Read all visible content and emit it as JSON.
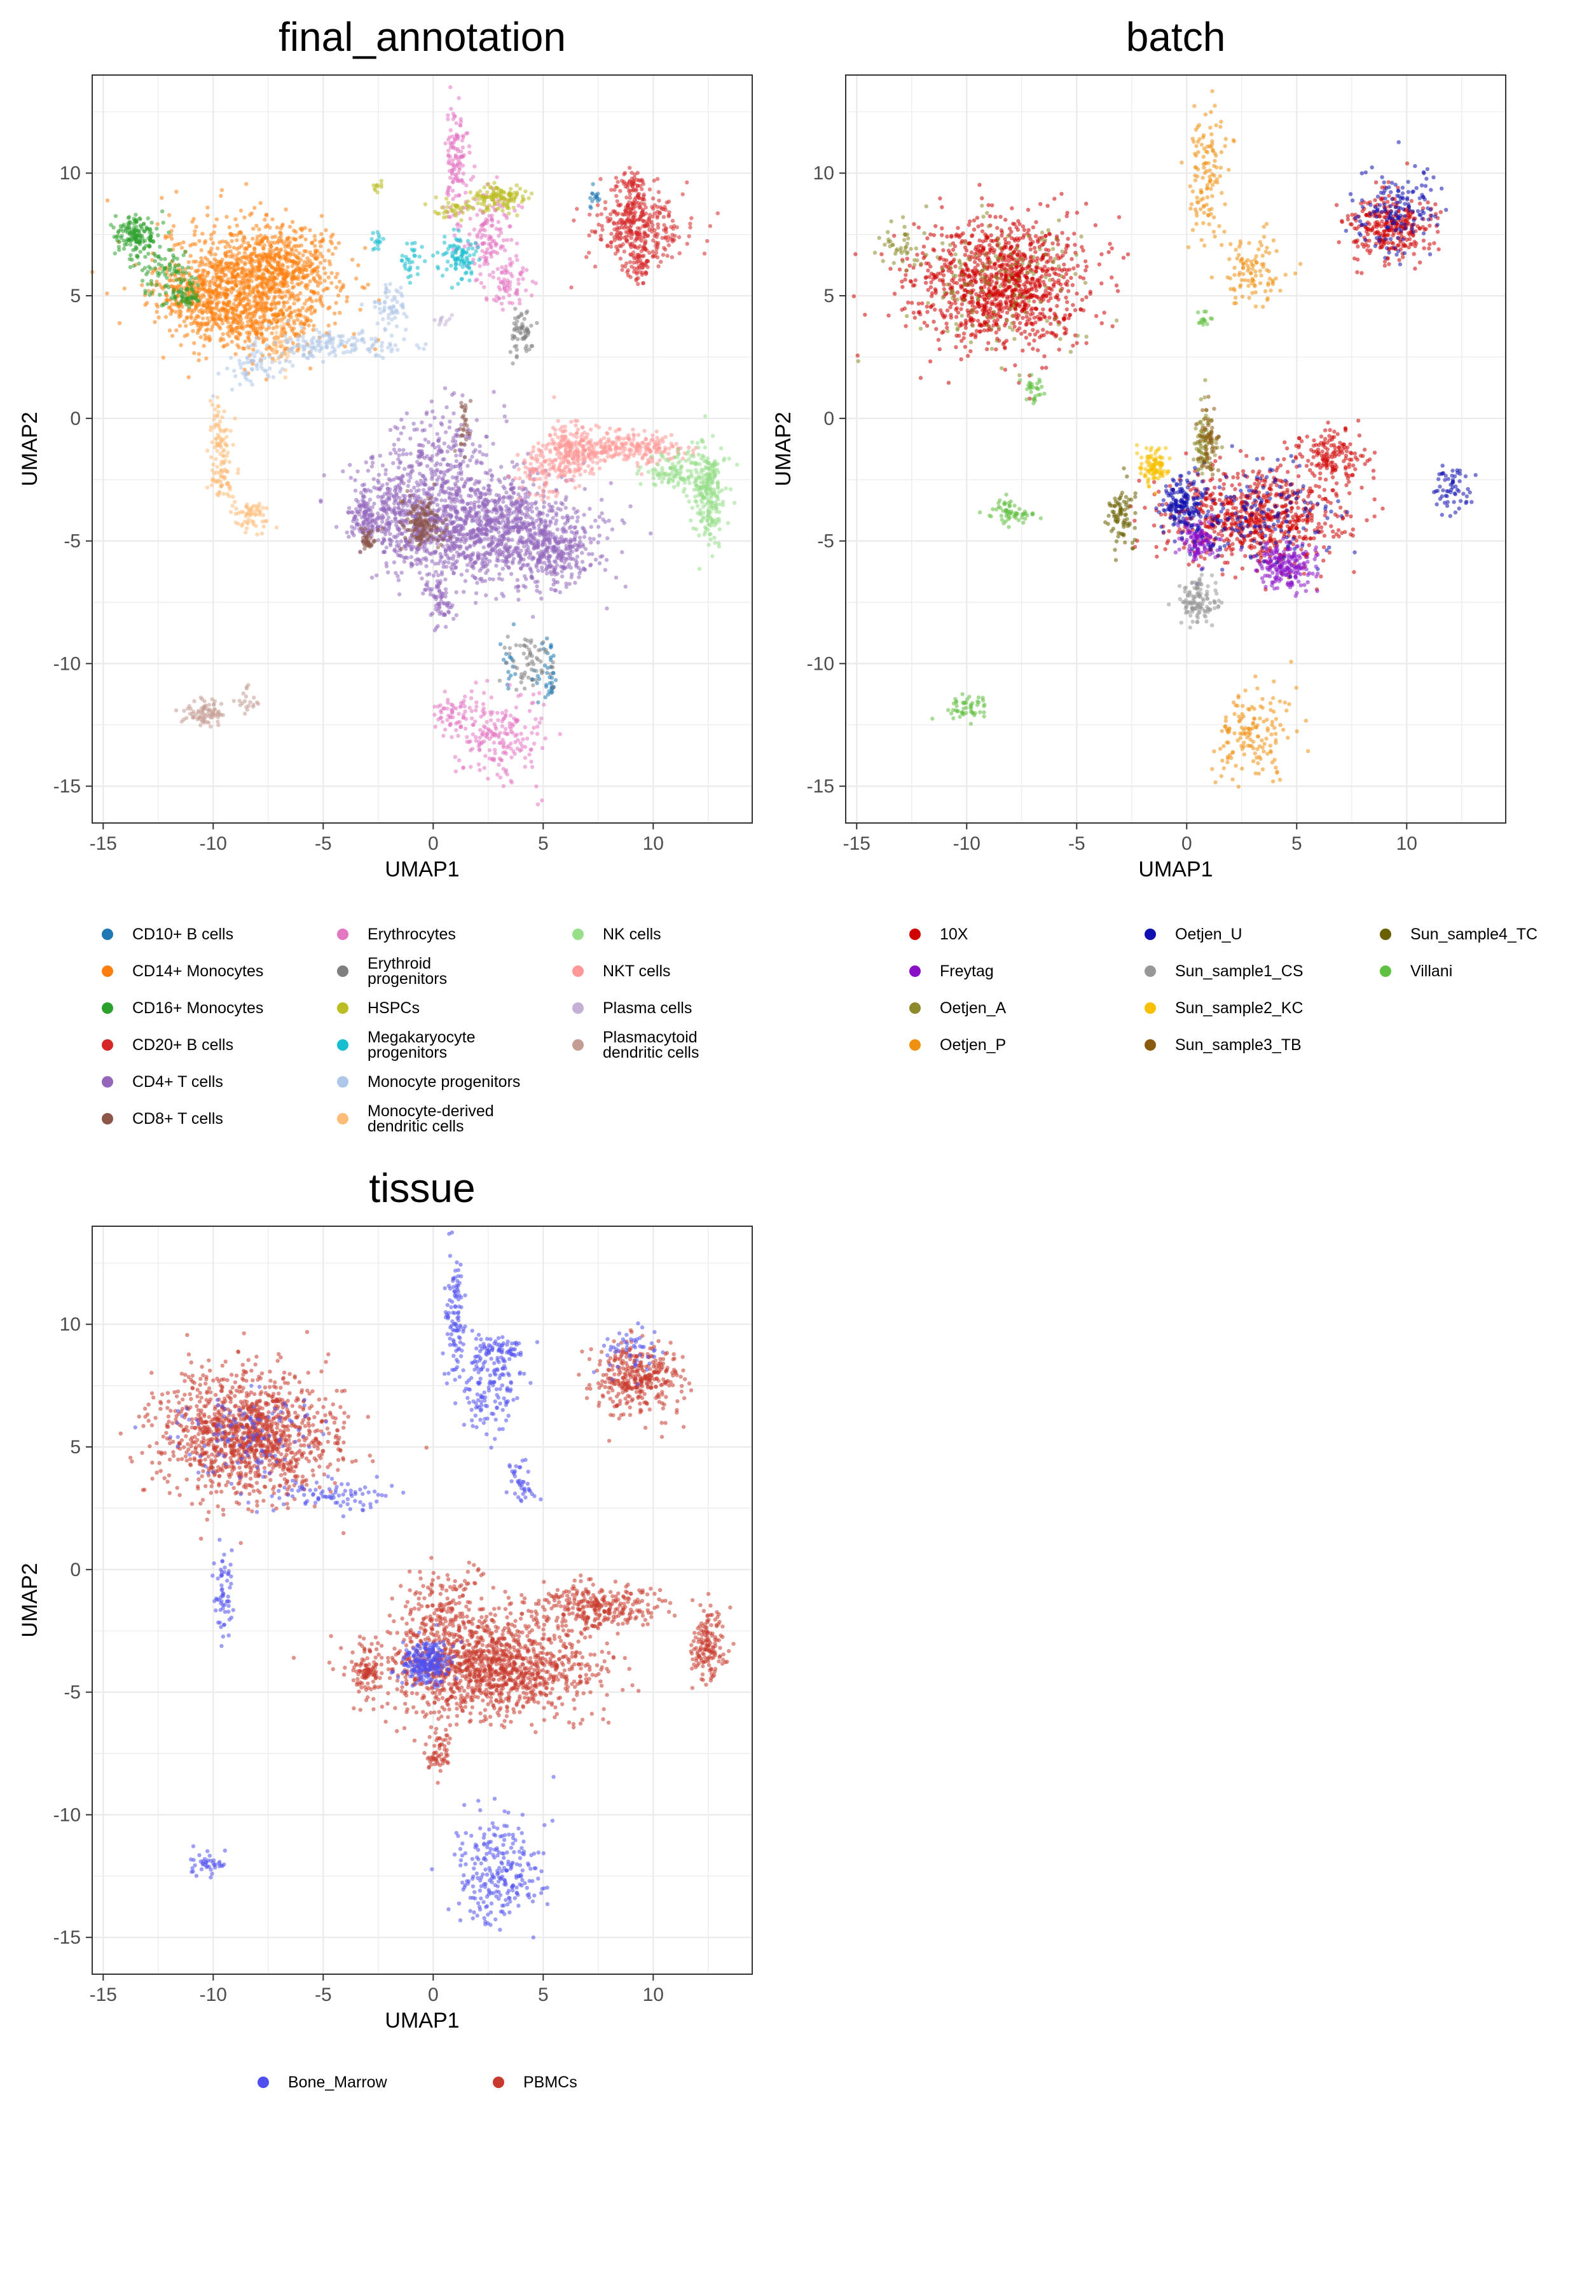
{
  "chart_data": [
    {
      "type": "scatter",
      "title": "final_annotation",
      "xlabel": "UMAP1",
      "ylabel": "UMAP2",
      "xlim": [
        -15.5,
        14.5
      ],
      "ylim": [
        -16.5,
        14
      ],
      "xticks": [
        -15,
        -10,
        -5,
        0,
        5,
        10
      ],
      "yticks": [
        -15,
        -10,
        -5,
        0,
        5,
        10
      ],
      "tick_labels_x": [
        "-15",
        "-10",
        "-5",
        "0",
        "5",
        "10"
      ],
      "tick_labels_y": [
        "-15",
        "-10",
        "-5",
        "0",
        "5",
        "10"
      ],
      "grid": true,
      "legend_position": "bottom",
      "legend": [
        {
          "name": "CD10+ B cells",
          "color": "#1f77b4"
        },
        {
          "name": "CD14+ Monocytes",
          "color": "#ff7f0e"
        },
        {
          "name": "CD16+ Monocytes",
          "color": "#2ca02c"
        },
        {
          "name": "CD20+ B cells",
          "color": "#d62728"
        },
        {
          "name": "CD4+ T cells",
          "color": "#9467bd"
        },
        {
          "name": "CD8+ T cells",
          "color": "#8c564b"
        },
        {
          "name": "Erythrocytes",
          "color": "#e377c2"
        },
        {
          "name": "Erythroid\nprogenitors",
          "color": "#7f7f7f"
        },
        {
          "name": "HSPCs",
          "color": "#bcbd22"
        },
        {
          "name": "Megakaryocyte\nprogenitors",
          "color": "#17becf"
        },
        {
          "name": "Monocyte progenitors",
          "color": "#aec7e8"
        },
        {
          "name": "Monocyte-derived\ndendritic cells",
          "color": "#ffbb78"
        },
        {
          "name": "NK cells",
          "color": "#98df8a"
        },
        {
          "name": "NKT cells",
          "color": "#ff9896"
        },
        {
          "name": "Plasma cells",
          "color": "#c5b0d5"
        },
        {
          "name": "Plasmacytoid\ndendritic cells",
          "color": "#c49c94"
        }
      ],
      "clusters": [
        {
          "color": "#ff7f0e",
          "points": [
            [
              -8.5,
              5.5,
              2.5,
              1.6,
              900
            ],
            [
              -6.8,
              6.2,
              1.6,
              1.0,
              300
            ],
            [
              -10.5,
              5,
              1.3,
              0.8,
              200
            ],
            [
              -8,
              3.8,
              1.8,
              0.7,
              200
            ]
          ]
        },
        {
          "color": "#2ca02c",
          "points": [
            [
              -13.5,
              7.5,
              0.6,
              0.6,
              150
            ],
            [
              -12.2,
              6.0,
              0.7,
              0.7,
              80
            ],
            [
              -11.2,
              5.0,
              0.5,
              0.4,
              50
            ]
          ]
        },
        {
          "color": "#d62728",
          "points": [
            [
              9.3,
              7.8,
              1.2,
              1.0,
              350
            ],
            [
              9.0,
              9.4,
              0.5,
              0.5,
              60
            ],
            [
              9.5,
              6.0,
              0.3,
              0.4,
              40
            ]
          ]
        },
        {
          "color": "#1f77b4",
          "points": [
            [
              7.3,
              9.0,
              0.2,
              0.3,
              15
            ],
            [
              5.2,
              -10.5,
              0.4,
              0.8,
              40
            ],
            [
              3.5,
              -10.0,
              0.3,
              0.7,
              15
            ]
          ]
        },
        {
          "color": "#9467bd",
          "points": [
            [
              2.5,
              -4.5,
              2.8,
              1.3,
              1200
            ],
            [
              -1.5,
              -3.8,
              1.5,
              1.3,
              400
            ],
            [
              5.5,
              -5.5,
              1.2,
              0.8,
              200
            ],
            [
              0.5,
              -1.5,
              1.4,
              1.2,
              200
            ],
            [
              0.3,
              -7.5,
              0.4,
              0.6,
              60
            ],
            [
              -3.2,
              -4.0,
              0.4,
              0.6,
              80
            ]
          ]
        },
        {
          "color": "#8c564b",
          "points": [
            [
              -0.5,
              -4.3,
              0.6,
              0.6,
              150
            ],
            [
              -3.0,
              -5.0,
              0.3,
              0.3,
              40
            ],
            [
              1.4,
              -0.2,
              0.2,
              0.7,
              30
            ]
          ]
        },
        {
          "color": "#ff9896",
          "points": [
            [
              6.2,
              -1.3,
              0.8,
              0.7,
              220
            ],
            [
              8.8,
              -1.2,
              1.5,
              0.4,
              220
            ],
            [
              4.8,
              -2.2,
              0.6,
              0.6,
              80
            ]
          ]
        },
        {
          "color": "#98df8a",
          "points": [
            [
              12.5,
              -3.0,
              0.5,
              1.2,
              250
            ],
            [
              11.0,
              -2.2,
              0.8,
              0.4,
              100
            ]
          ]
        },
        {
          "color": "#ffbb78",
          "points": [
            [
              -9.7,
              -1.0,
              0.3,
              1.2,
              80
            ],
            [
              -8.3,
              -4.0,
              0.6,
              0.4,
              60
            ],
            [
              -7.0,
              3.0,
              0.3,
              0.6,
              40
            ],
            [
              -9.6,
              -2.6,
              0.4,
              0.4,
              40
            ]
          ]
        },
        {
          "color": "#c49c94",
          "points": [
            [
              -10.3,
              -12.0,
              0.6,
              0.3,
              80
            ],
            [
              -8.5,
              -11.5,
              0.3,
              0.3,
              20
            ]
          ]
        },
        {
          "color": "#aec7e8",
          "points": [
            [
              -4.5,
              3.0,
              1.8,
              0.4,
              150
            ],
            [
              -2.0,
              4.5,
              0.5,
              0.6,
              60
            ],
            [
              -8.0,
              2.2,
              1.0,
              0.5,
              60
            ]
          ]
        },
        {
          "color": "#e377c2",
          "points": [
            [
              1.0,
              10.5,
              0.3,
              1.5,
              120
            ],
            [
              2.5,
              7.5,
              0.8,
              1.2,
              150
            ],
            [
              3.5,
              5.5,
              0.5,
              0.6,
              60
            ],
            [
              3.0,
              -13.0,
              1.2,
              1.2,
              200
            ],
            [
              0.8,
              -12.0,
              0.5,
              0.5,
              50
            ]
          ]
        },
        {
          "color": "#bcbd22",
          "points": [
            [
              3.0,
              9.0,
              0.8,
              0.3,
              120
            ],
            [
              1.0,
              8.5,
              0.6,
              0.3,
              40
            ],
            [
              -2.5,
              9.5,
              0.2,
              0.3,
              10
            ]
          ]
        },
        {
          "color": "#17becf",
          "points": [
            [
              1.2,
              6.5,
              0.5,
              0.6,
              90
            ],
            [
              -1.0,
              6.5,
              0.3,
              0.5,
              30
            ],
            [
              -2.5,
              7.2,
              0.2,
              0.3,
              15
            ]
          ]
        },
        {
          "color": "#7f7f7f",
          "points": [
            [
              4.0,
              3.5,
              0.4,
              0.6,
              60
            ],
            [
              4.5,
              -10.0,
              0.7,
              0.7,
              60
            ]
          ]
        },
        {
          "color": "#c5b0d5",
          "points": [
            [
              0.5,
              4.0,
              0.3,
              0.2,
              10
            ]
          ]
        }
      ]
    },
    {
      "type": "scatter",
      "title": "batch",
      "xlabel": "UMAP1",
      "ylabel": "UMAP2",
      "xlim": [
        -15.5,
        14.5
      ],
      "ylim": [
        -16.5,
        14
      ],
      "xticks": [
        -15,
        -10,
        -5,
        0,
        5,
        10
      ],
      "yticks": [
        -15,
        -10,
        -5,
        0,
        5,
        10
      ],
      "tick_labels_x": [
        "-15",
        "-10",
        "-5",
        "0",
        "5",
        "10"
      ],
      "tick_labels_y": [
        "-15",
        "-10",
        "-5",
        "0",
        "5",
        "10"
      ],
      "grid": true,
      "legend_position": "bottom",
      "legend": [
        {
          "name": "10X",
          "color": "#d00000"
        },
        {
          "name": "Freytag",
          "color": "#8a10c8"
        },
        {
          "name": "Oetjen_A",
          "color": "#8c8a2a"
        },
        {
          "name": "Oetjen_P",
          "color": "#f09010"
        },
        {
          "name": "Oetjen_U",
          "color": "#1010b0"
        },
        {
          "name": "Sun_sample1_CS",
          "color": "#989898"
        },
        {
          "name": "Sun_sample2_KC",
          "color": "#f8c000"
        },
        {
          "name": "Sun_sample3_TB",
          "color": "#8a5a10"
        },
        {
          "name": "Sun_sample4_TC",
          "color": "#6a6000"
        },
        {
          "name": "Villani",
          "color": "#60c040"
        }
      ],
      "clusters": [
        {
          "color": "#d00000",
          "points": [
            [
              -8.5,
              5.5,
              2.5,
              1.6,
              1100
            ],
            [
              3.0,
              -4.0,
              2.5,
              1.2,
              700
            ],
            [
              9.3,
              7.8,
              1.2,
              0.8,
              300
            ],
            [
              6.5,
              -1.5,
              1.0,
              0.7,
              150
            ]
          ]
        },
        {
          "color": "#8a10c8",
          "points": [
            [
              4.5,
              -6.0,
              0.8,
              0.6,
              200
            ],
            [
              0.5,
              -5.0,
              0.5,
              0.5,
              120
            ]
          ]
        },
        {
          "color": "#8c8a2a",
          "points": [
            [
              -8.5,
              5.5,
              2.5,
              1.6,
              150
            ],
            [
              0.8,
              -1.0,
              0.3,
              0.8,
              80
            ],
            [
              -13,
              7,
              0.6,
              0.6,
              40
            ]
          ]
        },
        {
          "color": "#f09010",
          "points": [
            [
              1.0,
              10.0,
              0.5,
              1.8,
              120
            ],
            [
              3.0,
              6.0,
              0.8,
              0.8,
              100
            ],
            [
              3.0,
              -13.0,
              1.2,
              1.2,
              150
            ]
          ]
        },
        {
          "color": "#1010b0",
          "points": [
            [
              9.5,
              8.5,
              1.2,
              1.0,
              150
            ],
            [
              -0.2,
              -3.5,
              0.6,
              0.6,
              150
            ],
            [
              3.0,
              -4.0,
              2.5,
              1.2,
              200
            ],
            [
              12.0,
              -3.0,
              0.6,
              0.8,
              60
            ]
          ]
        },
        {
          "color": "#989898",
          "points": [
            [
              0.5,
              -7.5,
              0.5,
              0.6,
              120
            ]
          ]
        },
        {
          "color": "#f8c000",
          "points": [
            [
              -1.5,
              -2.0,
              0.4,
              0.5,
              100
            ]
          ]
        },
        {
          "color": "#8a5a10",
          "points": [
            [
              1.0,
              -1.0,
              0.3,
              0.8,
              60
            ]
          ]
        },
        {
          "color": "#6a6000",
          "points": [
            [
              -3.0,
              -4.0,
              0.4,
              0.8,
              80
            ]
          ]
        },
        {
          "color": "#60c040",
          "points": [
            [
              -8.0,
              -3.8,
              0.6,
              0.4,
              60
            ],
            [
              -7.0,
              1.2,
              0.3,
              0.4,
              30
            ],
            [
              -10.0,
              -11.8,
              0.6,
              0.4,
              50
            ],
            [
              0.8,
              4.0,
              0.2,
              0.2,
              15
            ]
          ]
        }
      ]
    },
    {
      "type": "scatter",
      "title": "tissue",
      "xlabel": "UMAP1",
      "ylabel": "UMAP2",
      "xlim": [
        -15.5,
        14.5
      ],
      "ylim": [
        -16.5,
        14
      ],
      "xticks": [
        -15,
        -10,
        -5,
        0,
        5,
        10
      ],
      "yticks": [
        -15,
        -10,
        -5,
        0,
        5,
        10
      ],
      "tick_labels_x": [
        "-15",
        "-10",
        "-5",
        "0",
        "5",
        "10"
      ],
      "tick_labels_y": [
        "-15",
        "-10",
        "-5",
        "0",
        "5",
        "10"
      ],
      "grid": true,
      "legend_position": "bottom",
      "legend": [
        {
          "name": "Bone_Marrow",
          "color": "#5050f0"
        },
        {
          "name": "PBMCs",
          "color": "#c8382c"
        }
      ],
      "clusters": [
        {
          "color": "#c8382c",
          "points": [
            [
              -8.5,
              5.5,
              2.5,
              1.6,
              1200
            ],
            [
              2.5,
              -4.0,
              3.0,
              1.3,
              1300
            ],
            [
              9.3,
              7.8,
              1.2,
              0.9,
              350
            ],
            [
              7.5,
              -1.5,
              1.8,
              0.6,
              300
            ],
            [
              12.5,
              -3.0,
              0.5,
              1.0,
              150
            ],
            [
              -3.0,
              -4.2,
              0.4,
              0.6,
              80
            ],
            [
              0.3,
              -7.5,
              0.4,
              0.6,
              60
            ],
            [
              0.5,
              -1.5,
              1.2,
              1.0,
              150
            ]
          ]
        },
        {
          "color": "#5050f0",
          "points": [
            [
              -0.3,
              -3.8,
              0.7,
              0.6,
              250
            ],
            [
              1.0,
              10.5,
              0.3,
              1.5,
              100
            ],
            [
              2.5,
              7.5,
              0.9,
              1.2,
              150
            ],
            [
              3.0,
              9.0,
              0.8,
              0.3,
              60
            ],
            [
              3.0,
              -12.5,
              1.3,
              1.5,
              250
            ],
            [
              -9.5,
              -1.0,
              0.3,
              1.2,
              60
            ],
            [
              -10.3,
              -12.0,
              0.5,
              0.3,
              40
            ],
            [
              -4.5,
              3.0,
              1.8,
              0.4,
              80
            ],
            [
              4.0,
              3.5,
              0.4,
              0.6,
              40
            ],
            [
              -8.5,
              5.5,
              2.0,
              1.3,
              120
            ],
            [
              9.0,
              9.0,
              0.8,
              0.6,
              50
            ]
          ]
        }
      ]
    }
  ]
}
